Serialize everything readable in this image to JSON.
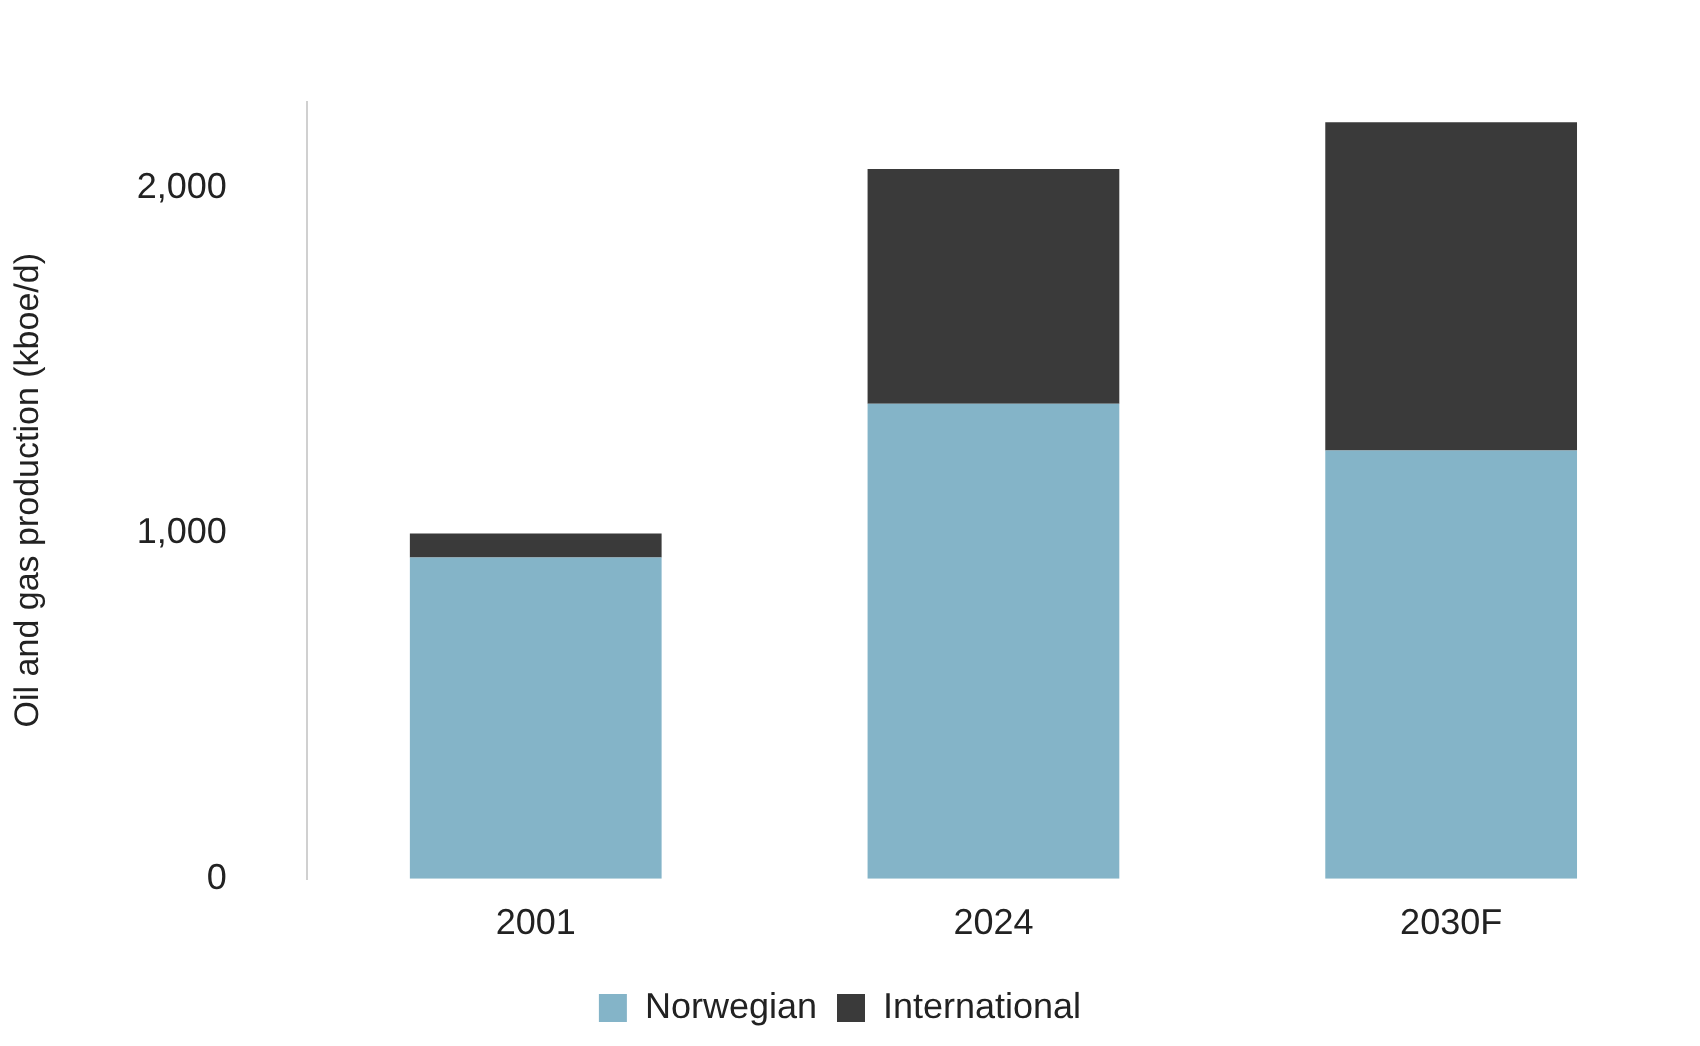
{
  "chart_data": {
    "type": "bar",
    "ylabel": "Oil and gas production (kboe/d)",
    "categories": [
      "2001",
      "2024",
      "2030F"
    ],
    "stacked": true,
    "series": [
      {
        "name": "Norwegian",
        "color": "#84b4c8",
        "values": [
          930,
          1375,
          1240
        ]
      },
      {
        "name": "International",
        "color": "#3a3a3a",
        "values": [
          70,
          680,
          950
        ]
      }
    ],
    "ylim": [
      0,
      2250
    ],
    "yticks": [
      0,
      {
        "value": 1000,
        "label": "1,000"
      },
      {
        "value": 2000,
        "label": "2,000"
      }
    ],
    "grid": false,
    "legend": "bottom"
  }
}
